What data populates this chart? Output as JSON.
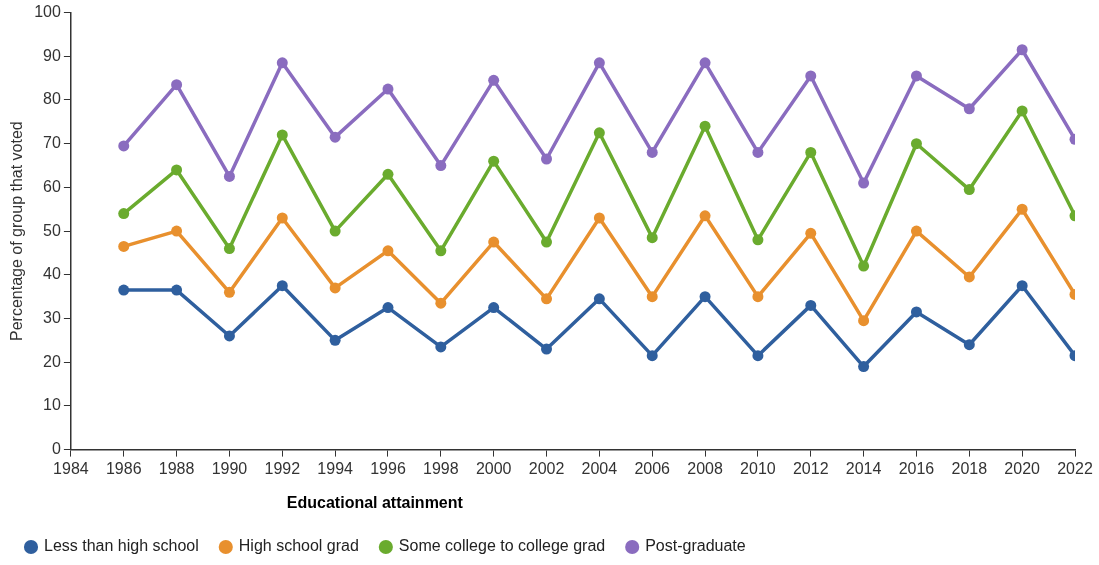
{
  "chart_data": {
    "type": "line",
    "ylabel": "Percentage of group that voted",
    "legend_title": "Educational attainment",
    "x": [
      1986,
      1988,
      1990,
      1992,
      1994,
      1996,
      1998,
      2000,
      2002,
      2004,
      2006,
      2008,
      2010,
      2012,
      2014,
      2016,
      2018,
      2020,
      2022
    ],
    "series": [
      {
        "name": "Less than high school",
        "color": "#2f5f9e",
        "values": [
          36.5,
          36.5,
          26,
          37.5,
          25,
          32.5,
          23.5,
          32.5,
          23,
          34.5,
          21.5,
          35,
          21.5,
          33,
          19,
          31.5,
          24,
          37.5,
          21.5
        ]
      },
      {
        "name": "High school grad",
        "color": "#e8902e",
        "values": [
          46.5,
          50,
          36,
          53,
          37,
          45.5,
          33.5,
          47.5,
          34.5,
          53,
          35,
          53.5,
          35,
          49.5,
          29.5,
          50,
          39.5,
          55,
          35.5
        ]
      },
      {
        "name": "Some college to college grad",
        "color": "#6aab2e",
        "values": [
          54,
          64,
          46,
          72,
          50,
          63,
          45.5,
          66,
          47.5,
          72.5,
          48.5,
          74,
          48,
          68,
          42,
          70,
          59.5,
          77.5,
          53.5
        ]
      },
      {
        "name": "Post-graduate",
        "color": "#8a6cbf",
        "values": [
          69.5,
          83.5,
          62.5,
          88.5,
          71.5,
          82.5,
          65,
          84.5,
          66.5,
          88.5,
          68,
          88.5,
          68,
          85.5,
          61,
          85.5,
          78,
          91.5,
          71
        ]
      }
    ],
    "xlim": [
      1984,
      2022
    ],
    "xticks": [
      1984,
      1986,
      1988,
      1990,
      1992,
      1994,
      1996,
      1998,
      2000,
      2002,
      2004,
      2006,
      2008,
      2010,
      2012,
      2014,
      2016,
      2018,
      2020,
      2022
    ],
    "ylim": [
      0,
      100
    ],
    "yticks": [
      0,
      10,
      20,
      30,
      40,
      50,
      60,
      70,
      80,
      90,
      100
    ],
    "grid": false,
    "legend": "bottom",
    "marker": "circle",
    "line_style": "solid"
  }
}
